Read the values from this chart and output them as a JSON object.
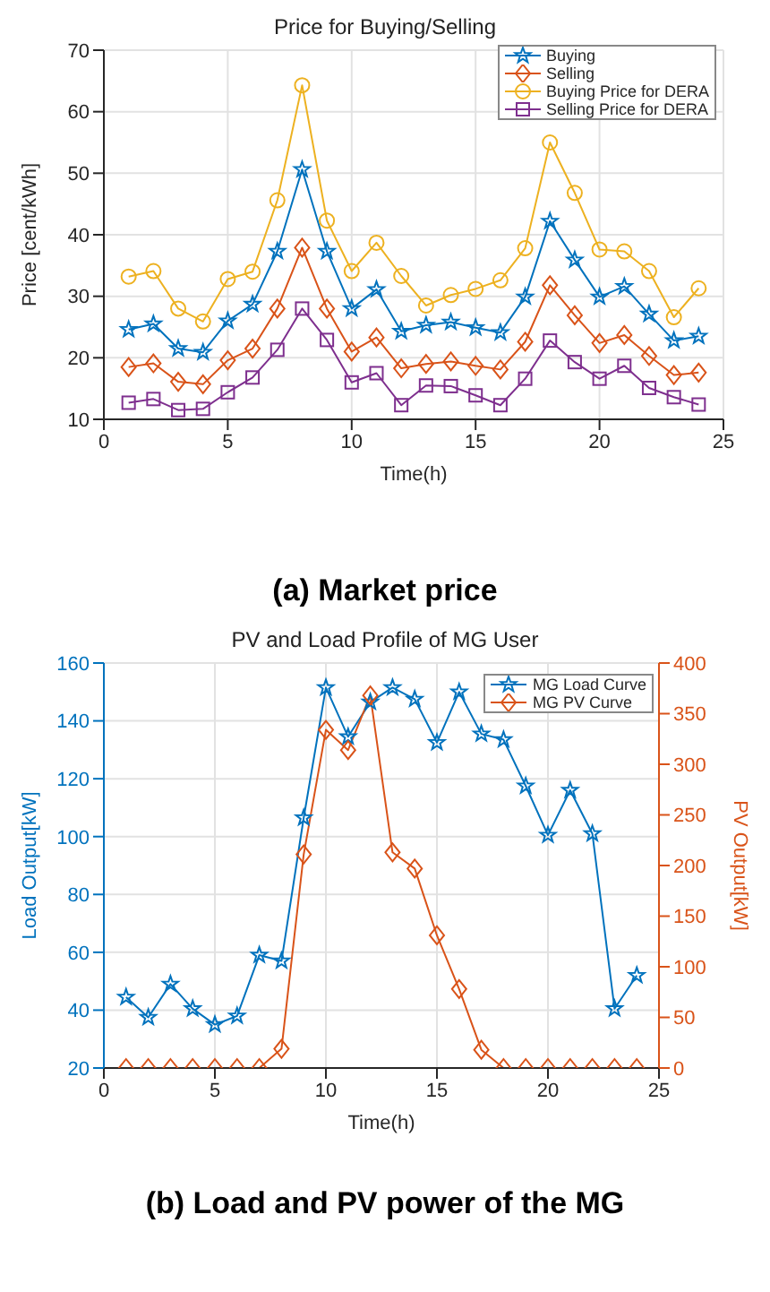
{
  "chart_data": [
    {
      "type": "line",
      "title": "Price for Buying/Selling",
      "xlabel": "Time(h)",
      "ylabel": "Price [cent/kWh]",
      "annotations": [
        "(a) Market price"
      ],
      "x": [
        1,
        2,
        3,
        4,
        5,
        6,
        7,
        8,
        9,
        10,
        11,
        12,
        13,
        14,
        15,
        16,
        17,
        18,
        19,
        20,
        21,
        22,
        23,
        24
      ],
      "xlim": [
        0,
        25
      ],
      "xticks": [
        0,
        5,
        10,
        15,
        20,
        25
      ],
      "ylim": [
        10,
        70
      ],
      "yticks": [
        10,
        20,
        30,
        40,
        50,
        60,
        70
      ],
      "grid": true,
      "legend": "top right",
      "series": [
        {
          "name": "Buying",
          "color": "#0072bd",
          "marker": "star",
          "values": [
            24.6,
            25.5,
            21.5,
            20.9,
            26.0,
            28.7,
            37.3,
            50.6,
            37.3,
            28.0,
            31.1,
            24.3,
            25.3,
            25.8,
            24.9,
            24.1,
            29.9,
            42.2,
            35.9,
            29.9,
            31.6,
            27.1,
            22.8,
            23.5
          ]
        },
        {
          "name": "Selling",
          "color": "#d95319",
          "marker": "diamond",
          "values": [
            18.5,
            19.1,
            16.1,
            15.7,
            19.6,
            21.5,
            28.0,
            37.9,
            28.0,
            21.0,
            23.3,
            18.3,
            19.0,
            19.4,
            18.7,
            18.1,
            22.6,
            31.8,
            26.9,
            22.4,
            23.7,
            20.3,
            17.2,
            17.6
          ]
        },
        {
          "name": "Buying Price for DERA",
          "color": "#edb120",
          "marker": "circle",
          "values": [
            33.2,
            34.1,
            28.0,
            25.9,
            32.8,
            34.0,
            45.6,
            64.3,
            42.3,
            34.1,
            38.7,
            33.3,
            28.5,
            30.2,
            31.2,
            32.6,
            37.8,
            55.0,
            46.8,
            37.6,
            37.3,
            34.1,
            26.6,
            31.3
          ]
        },
        {
          "name": "Selling Price for DERA",
          "color": "#7e2f8e",
          "marker": "square",
          "values": [
            12.7,
            13.3,
            11.5,
            11.7,
            14.4,
            16.8,
            21.3,
            28.0,
            22.9,
            16.0,
            17.5,
            12.3,
            15.5,
            15.4,
            13.9,
            12.3,
            16.6,
            22.8,
            19.3,
            16.6,
            18.7,
            15.1,
            13.6,
            12.4
          ]
        }
      ]
    },
    {
      "type": "line",
      "title": "PV and Load Profile of MG User",
      "xlabel": "Time(h)",
      "ylabel": "Load Output[kW]",
      "y2label": "PV Output[kW]",
      "annotations": [
        "(b) Load and PV power of the MG"
      ],
      "x": [
        1,
        2,
        3,
        4,
        5,
        6,
        7,
        8,
        9,
        10,
        11,
        12,
        13,
        14,
        15,
        16,
        17,
        18,
        19,
        20,
        21,
        22,
        23,
        24
      ],
      "xlim": [
        0,
        25
      ],
      "xticks": [
        0,
        5,
        10,
        15,
        20,
        25
      ],
      "ylim": [
        20,
        160
      ],
      "yticks": [
        20,
        40,
        60,
        80,
        100,
        120,
        140,
        160
      ],
      "y2lim": [
        0,
        400
      ],
      "y2ticks": [
        0,
        50,
        100,
        150,
        200,
        250,
        300,
        350,
        400
      ],
      "grid": true,
      "legend": "top right",
      "series": [
        {
          "name": "MG Load Curve",
          "color": "#0072bd",
          "marker": "star",
          "values": [
            44.5,
            37.5,
            49,
            40.5,
            35,
            38,
            59,
            57,
            106.5,
            151.5,
            134.5,
            146.5,
            151.5,
            147.5,
            132.5,
            150,
            135.5,
            133.5,
            117.5,
            100.5,
            116,
            101,
            40.5,
            52
          ]
        },
        {
          "name": "MG PV Curve",
          "color": "#d95319",
          "marker": "diamond",
          "axis": "y2",
          "values": [
            0,
            0,
            0,
            0,
            0,
            0,
            0,
            19,
            211,
            334,
            314,
            368,
            213,
            197,
            131,
            78,
            18,
            0,
            0,
            0,
            0,
            0,
            0,
            0
          ]
        }
      ]
    }
  ]
}
